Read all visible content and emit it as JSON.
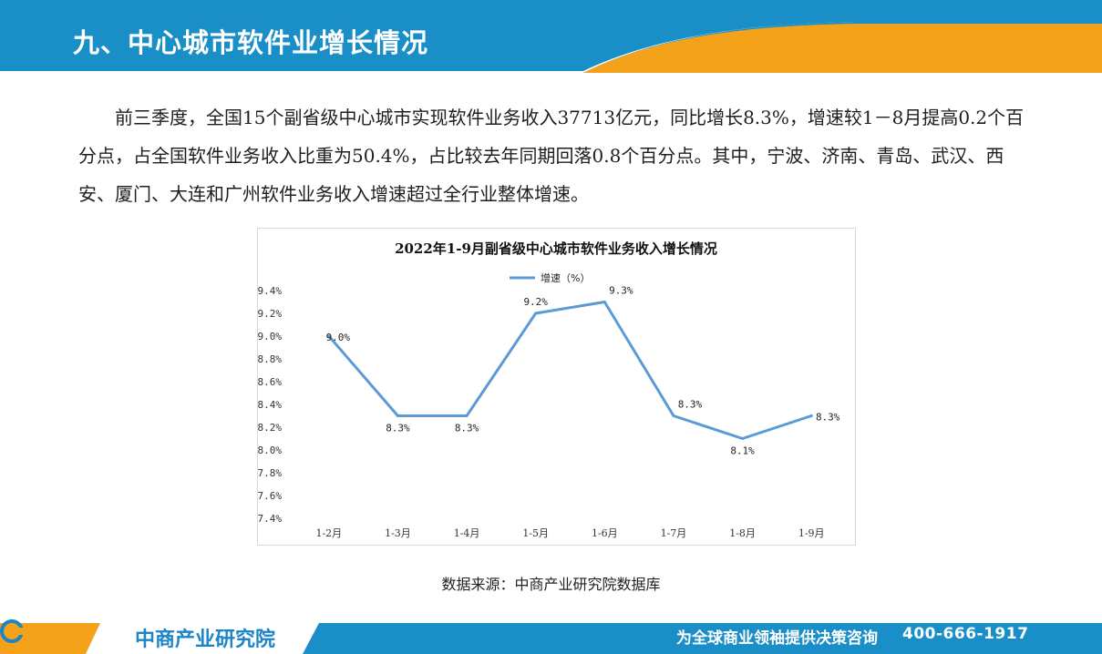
{
  "header": {
    "title": "九、中心城市软件业增长情况"
  },
  "body": {
    "paragraph": "前三季度，全国15个副省级中心城市实现软件业务收入37713亿元，同比增长8.3%，增速较1－8月提高0.2个百分点，占全国软件业务收入比重为50.4%，占比较去年同期回落0.8个百分点。其中，宁波、济南、青岛、武汉、西安、厦门、大连和广州软件业务收入增速超过全行业整体增速。"
  },
  "chart_data": {
    "type": "line",
    "title": "2022年1-9月副省级中心城市软件业务收入增长情况",
    "categories": [
      "1-2月",
      "1-3月",
      "1-4月",
      "1-5月",
      "1-6月",
      "1-7月",
      "1-8月",
      "1-9月"
    ],
    "series": [
      {
        "name": "增速（%）",
        "values": [
          9.0,
          8.3,
          8.3,
          9.2,
          9.3,
          8.3,
          8.1,
          8.3
        ],
        "data_labels": [
          "9.0%",
          "8.3%",
          "8.3%",
          "9.2%",
          "9.3%",
          "8.3%",
          "8.1%",
          "8.3%"
        ],
        "color": "#5b9bd5"
      }
    ],
    "ylim": [
      7.4,
      9.4
    ],
    "yticks": [
      "7.4%",
      "7.6%",
      "7.8%",
      "8.0%",
      "8.2%",
      "8.4%",
      "8.6%",
      "8.8%",
      "9.0%",
      "9.2%",
      "9.4%"
    ],
    "legend_position": "top",
    "grid": false
  },
  "source_note": "数据来源：中商产业研究院数据库",
  "footer": {
    "logo_text": "中商产业研究院",
    "slogan": "为全球商业领袖提供决策咨询",
    "phone": "400-666-1917"
  },
  "colors": {
    "header_blue": "#1a8fc7",
    "accent_orange": "#f5a21b",
    "line_blue": "#5b9bd5"
  },
  "icons": [
    "logo-mark-icon"
  ]
}
